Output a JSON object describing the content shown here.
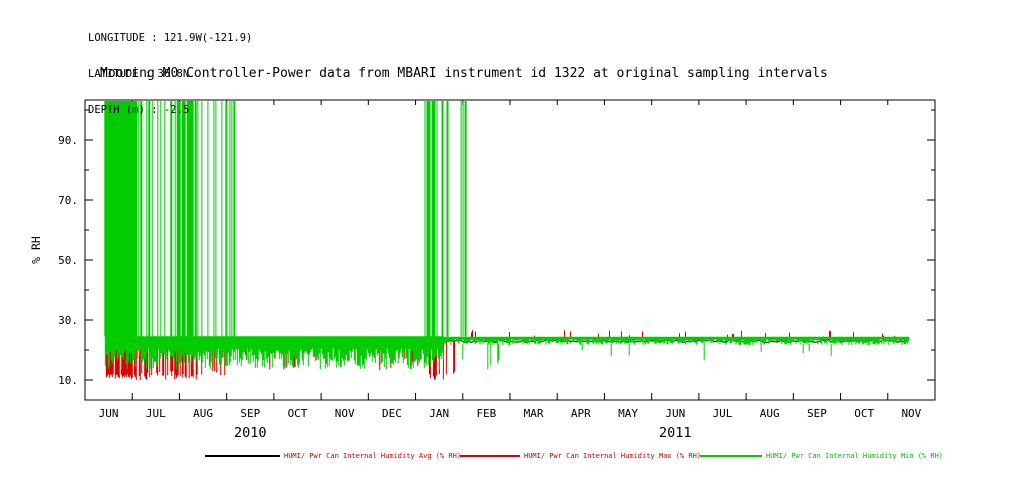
{
  "meta": {
    "longitude": "LONGITUDE : 121.9W(-121.9)",
    "latitude": "LATITUDE : 36.8N",
    "depth": "DEPTH (m) : -2.5"
  },
  "chart_data": {
    "type": "line",
    "title": "Mooring M0 Controller-Power data from MBARI instrument id 1322 at original sampling intervals",
    "xlabel": "",
    "ylabel": "% RH",
    "ylim": [
      3.3,
      103.3
    ],
    "ytick_values": [
      90,
      70,
      50,
      30,
      10
    ],
    "ytick_labels": [
      "90.",
      "70.",
      "50.",
      "30.",
      "10."
    ],
    "x_months": [
      "JUN",
      "JUL",
      "AUG",
      "SEP",
      "OCT",
      "NOV",
      "DEC",
      "JAN",
      "FEB",
      "MAR",
      "APR",
      "MAY",
      "JUN",
      "JUL",
      "AUG",
      "SEP",
      "OCT",
      "NOV"
    ],
    "year_labels": [
      {
        "label": "2010",
        "month_center": 3.5
      },
      {
        "label": "2011",
        "month_center": 12.5
      }
    ],
    "legend_position": "bottom",
    "series": [
      {
        "name": "HUMI/ Pwr Can Internal Humidity Avg (% RH)",
        "color": "#000000",
        "label_color": "#cc0000",
        "line": {
          "start": 0.43,
          "end": 17.45,
          "value": 23,
          "jitter": 1
        }
      },
      {
        "name": "HUMI/ Pwr Can Internal Humidity Max (% RH)",
        "color": "#dd0000",
        "label_color": "#cc0000",
        "clusters": [
          {
            "start": 0.45,
            "end": 1.2,
            "density": 0.8,
            "v_from": 23,
            "v_to": 10,
            "v_jitter": 2
          },
          {
            "start": 1.2,
            "end": 1.91,
            "density": 0.5,
            "v_from": 23,
            "v_to": 10,
            "v_jitter": 3
          },
          {
            "start": 1.91,
            "end": 2.45,
            "density": 0.65,
            "v_from": 23,
            "v_to": 10,
            "v_jitter": 2
          },
          {
            "start": 2.45,
            "end": 3.1,
            "density": 0.2,
            "v_from": 23,
            "v_to": 11,
            "v_jitter": 3
          },
          {
            "start": 2.6,
            "end": 7.2,
            "density": 0.06,
            "v_from": 21,
            "v_to": 13,
            "v_jitter": 5
          },
          {
            "start": 7.25,
            "end": 7.7,
            "density": 0.55,
            "v_from": 23,
            "v_to": 10,
            "v_jitter": 2
          },
          {
            "start": 7.7,
            "end": 8.0,
            "density": 0.25,
            "v_from": 23,
            "v_to": 11,
            "v_jitter": 3
          },
          {
            "start": 8.1,
            "end": 17.4,
            "density": 0.1,
            "v_from": 23.8,
            "v_to": 24.5,
            "v_jitter": 2.2
          }
        ]
      },
      {
        "name": "HUMI/ Pwr Can Internal Humidity Min (% RH)",
        "color": "#00cc00",
        "label_color": "#00bb00",
        "clusters": [
          {
            "start": 0.43,
            "end": 7.6,
            "density": 1,
            "v_from": 24.6,
            "v_to": 13.5,
            "v_jitter": 7
          },
          {
            "start": 7.6,
            "end": 17.45,
            "density": 1,
            "v_from": 24.4,
            "v_to": 21.6,
            "v_jitter": 2
          },
          {
            "start": 8.0,
            "end": 9.3,
            "density": 0.07,
            "v_from": 22,
            "v_to": 13,
            "v_jitter": 4
          },
          {
            "start": 9.3,
            "end": 17.3,
            "density": 0.02,
            "v_from": 22,
            "v_to": 16,
            "v_jitter": 4
          },
          {
            "start": 0.42,
            "end": 1.16,
            "density": 0.9,
            "v_from": 24.5,
            "v_to": 103,
            "v_jitter": 0
          },
          {
            "start": 1.16,
            "end": 1.91,
            "density": 0.45,
            "v_from": 24.5,
            "v_to": 103,
            "v_jitter": 0
          },
          {
            "start": 1.91,
            "end": 2.37,
            "density": 0.8,
            "v_from": 24.5,
            "v_to": 103,
            "v_jitter": 0
          },
          {
            "start": 2.37,
            "end": 2.9,
            "density": 0.35,
            "v_from": 24.5,
            "v_to": 103,
            "v_jitter": 0
          },
          {
            "start": 2.9,
            "end": 3.24,
            "density": 0.15,
            "v_from": 24.5,
            "v_to": 103,
            "v_jitter": 0
          },
          {
            "start": 7.2,
            "end": 7.69,
            "density": 0.7,
            "v_from": 24.5,
            "v_to": 103,
            "v_jitter": 0
          },
          {
            "start": 7.69,
            "end": 8.09,
            "density": 0.35,
            "v_from": 24.5,
            "v_to": 103,
            "v_jitter": 0
          }
        ]
      }
    ]
  }
}
